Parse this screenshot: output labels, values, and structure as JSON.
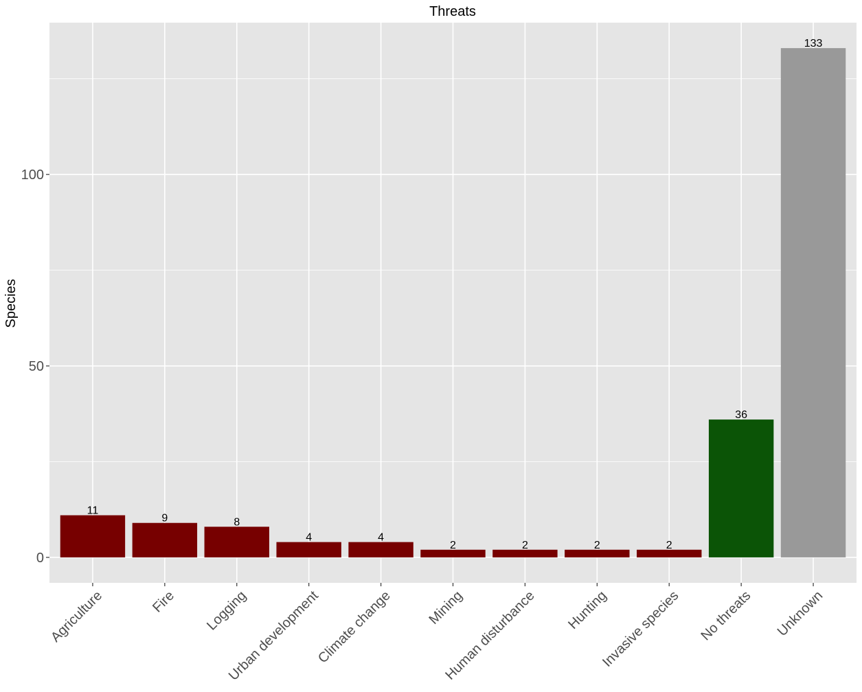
{
  "chart_data": {
    "type": "bar",
    "title": "Threats",
    "xlabel": "",
    "ylabel": "Species",
    "categories": [
      "Agriculture",
      "Fire",
      "Logging",
      "Urban development",
      "Climate change",
      "Mining",
      "Human disturbance",
      "Hunting",
      "Invasive species",
      "No threats",
      "Unknown"
    ],
    "values": [
      11,
      9,
      8,
      4,
      4,
      2,
      2,
      2,
      2,
      36,
      133
    ],
    "bar_colors": [
      "#770000",
      "#770000",
      "#770000",
      "#770000",
      "#770000",
      "#770000",
      "#770000",
      "#770000",
      "#770000",
      "#0b5406",
      "#999999"
    ],
    "data_labels": [
      "11",
      "9",
      "8",
      "4",
      "4",
      "2",
      "2",
      "2",
      "2",
      "36",
      "133"
    ],
    "yticks": [
      0,
      50,
      100
    ],
    "ytick_labels": [
      "0",
      "50",
      "100"
    ],
    "ylim": [
      -6.65,
      139.65
    ],
    "grid": true,
    "legend": "none",
    "panel_background": "#e5e5e5",
    "grid_color": "#ffffff"
  }
}
